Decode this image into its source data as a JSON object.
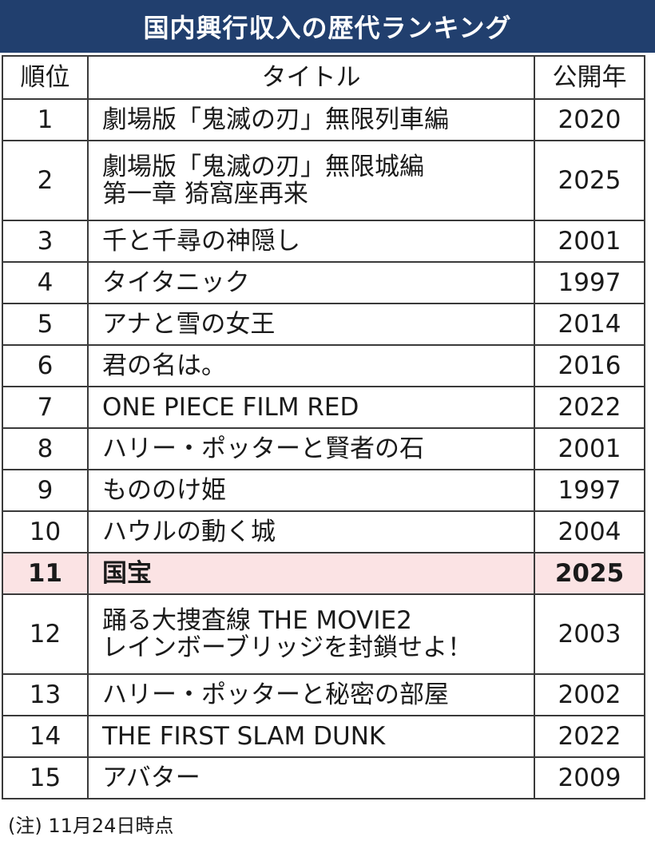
{
  "title": "国内興行収入の歴代ランキング",
  "columns": {
    "rank": "順位",
    "title": "タイトル",
    "year": "公開年"
  },
  "rows": [
    {
      "rank": "1",
      "title": "劇場版「鬼滅の刃」無限列車編",
      "year": "2020"
    },
    {
      "rank": "2",
      "title": "劇場版「鬼滅の刃」無限城編\n第一章 猗窩座再来",
      "year": "2025"
    },
    {
      "rank": "3",
      "title": "千と千尋の神隠し",
      "year": "2001"
    },
    {
      "rank": "4",
      "title": "タイタニック",
      "year": "1997"
    },
    {
      "rank": "5",
      "title": "アナと雪の女王",
      "year": "2014"
    },
    {
      "rank": "6",
      "title": "君の名は。",
      "year": "2016"
    },
    {
      "rank": "7",
      "title": "ONE PIECE FILM RED",
      "year": "2022"
    },
    {
      "rank": "8",
      "title": "ハリー・ポッターと賢者の石",
      "year": "2001"
    },
    {
      "rank": "9",
      "title": "もののけ姫",
      "year": "1997"
    },
    {
      "rank": "10",
      "title": "ハウルの動く城",
      "year": "2004"
    },
    {
      "rank": "11",
      "title": "国宝",
      "year": "2025"
    },
    {
      "rank": "12",
      "title": "踊る大捜査線 THE MOVIE2\nレインボーブリッジを封鎖せよ！",
      "year": "2003"
    },
    {
      "rank": "13",
      "title": "ハリー・ポッターと秘密の部屋",
      "year": "2002"
    },
    {
      "rank": "14",
      "title": "THE FIRST SLAM DUNK",
      "year": "2022"
    },
    {
      "rank": "15",
      "title": "アバター",
      "year": "2009"
    }
  ],
  "highlight_rank": "11",
  "colors": {
    "header_bg": "#213f6e",
    "highlight_bg": "#fbe3e4"
  },
  "note": "(注) 11月24日時点"
}
